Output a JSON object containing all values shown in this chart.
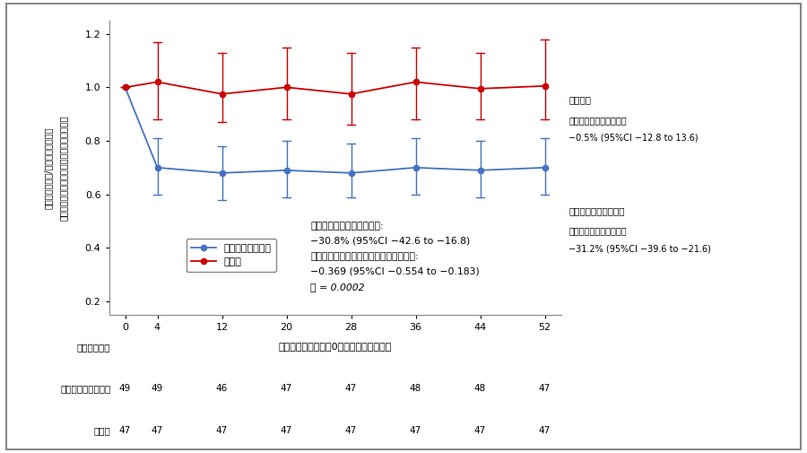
{
  "x": [
    0,
    4,
    12,
    20,
    28,
    36,
    44,
    52
  ],
  "canagliflozin_y": [
    1.0,
    0.7,
    0.68,
    0.69,
    0.68,
    0.7,
    0.69,
    0.7
  ],
  "canagliflozin_ci_upper": [
    1.0,
    0.81,
    0.78,
    0.8,
    0.79,
    0.81,
    0.8,
    0.81
  ],
  "canagliflozin_ci_lower": [
    1.0,
    0.6,
    0.58,
    0.59,
    0.59,
    0.6,
    0.59,
    0.6
  ],
  "control_y": [
    1.0,
    1.02,
    0.975,
    1.0,
    0.975,
    1.02,
    0.995,
    1.005
  ],
  "control_ci_upper": [
    1.0,
    1.17,
    1.13,
    1.15,
    1.13,
    1.15,
    1.13,
    1.18
  ],
  "control_ci_lower": [
    1.0,
    0.88,
    0.87,
    0.88,
    0.86,
    0.88,
    0.88,
    0.88
  ],
  "canagliflozin_color": "#4472C4",
  "control_color": "#CC0000",
  "canagliflozin_label": "カナグリフロジン",
  "control_label": "対照群",
  "xlabel": "無作為割付の時点を0週とした場合の週数",
  "ylabel_line1": "尿中アルブミン/クレアチニン比の",
  "ylabel_line2": "ベースラインからの変化率の最小二乗平均値",
  "ylim": [
    0.15,
    1.25
  ],
  "yticks": [
    0.2,
    0.4,
    0.6,
    0.8,
    1.0,
    1.2
  ],
  "xticks": [
    0,
    4,
    12,
    20,
    28,
    36,
    44,
    52
  ],
  "ann_line1": "介入期間中の群間差の割合:",
  "ann_line2": "−30.8% (95%CI −42.6 to −16.8)",
  "ann_line3": "介入期間中の群間差を対数変換したもの:",
  "ann_line4": "−0.369 (95%CI −0.554 to −0.183)",
  "ann_line5": "Ｐ = 0.0002",
  "ctrl_ann_line1": "対照群：",
  "ctrl_ann_line2": "治療開始前からの変化率",
  "ctrl_ann_line3": "−0.5% (95%CI −12.8 to 13.6)",
  "canag_ann_line1": "カナグリフロジン群：",
  "canag_ann_line2": "治療開始前からの変化率",
  "canag_ann_line3": "−31.2% (95%CI −39.6 to −21.6)",
  "participants_header": "参加者の人数",
  "canagliflozin_row_label": "カナグリフロジン群",
  "control_row_label": "対照群",
  "canagliflozin_n": [
    49,
    49,
    46,
    47,
    47,
    48,
    48,
    47
  ],
  "control_n": [
    47,
    47,
    47,
    47,
    47,
    47,
    47,
    47
  ],
  "bg_color": "#FFFFFF",
  "border_color": "#999999"
}
